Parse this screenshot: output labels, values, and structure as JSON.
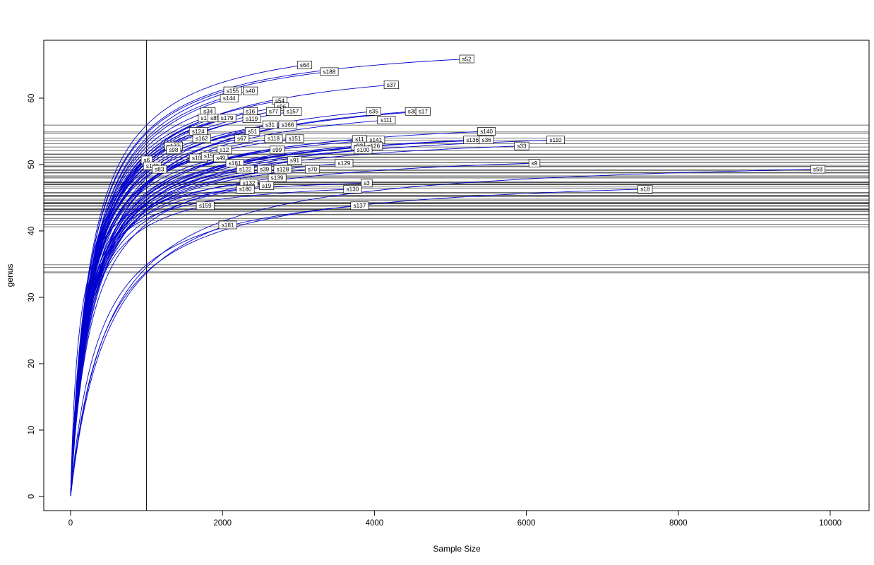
{
  "figure": {
    "background": "#ffffff",
    "curve_color": "#0000cd",
    "ref_line_color": "#454545",
    "box_color": "#000000",
    "label_box_fill": "#ffffff",
    "label_box_border": "#000000",
    "label_text_color": "#000000"
  },
  "chart_data": {
    "type": "line",
    "title": "",
    "xlabel": "Sample Size",
    "ylabel": "genus",
    "xlim": [
      0,
      10000
    ],
    "ylim": [
      0,
      66
    ],
    "x_ticks": [
      0,
      2000,
      4000,
      6000,
      8000,
      10000
    ],
    "y_ticks": [
      0,
      10,
      20,
      30,
      40,
      50,
      60
    ],
    "grid": false,
    "legend": "none",
    "vertical_reference_x": 1000,
    "curve_start": [
      1,
      1
    ],
    "curve_model": "y(x) = y_end * (x/(x+k)) / (x_end/(x_end+k)); horizontal reference line per curve at y(1000)",
    "description": "Rarefaction curves: genus richness vs sample size for each sample (blue curves, labelled boxes at curve ends). Vertical line at sample size 1000; horizontal lines mark each sample's rarefied richness at 1000.",
    "series": [
      {
        "label": "s52",
        "x_end": 5215,
        "y_end": 65.9,
        "k": 260
      },
      {
        "label": "s64",
        "x_end": 3081,
        "y_end": 65.0,
        "k": 260
      },
      {
        "label": "s188",
        "x_end": 3406,
        "y_end": 64.0,
        "k": 260
      },
      {
        "label": "s37",
        "x_end": 4222,
        "y_end": 62.0,
        "k": 300
      },
      {
        "label": "s155",
        "x_end": 2134,
        "y_end": 61.1,
        "k": 280
      },
      {
        "label": "s40",
        "x_end": 2366,
        "y_end": 61.1,
        "k": 270
      },
      {
        "label": "s144",
        "x_end": 2088,
        "y_end": 60.0,
        "k": 280
      },
      {
        "label": "s54",
        "x_end": 2756,
        "y_end": 59.6,
        "k": 270
      },
      {
        "label": "s96",
        "x_end": 2775,
        "y_end": 58.7,
        "k": 270
      },
      {
        "label": "s34",
        "x_end": 1810,
        "y_end": 58.0,
        "k": 260
      },
      {
        "label": "s16",
        "x_end": 2366,
        "y_end": 58.0,
        "k": 260
      },
      {
        "label": "s77",
        "x_end": 2672,
        "y_end": 58.0,
        "k": 270
      },
      {
        "label": "s157",
        "x_end": 2923,
        "y_end": 58.0,
        "k": 270
      },
      {
        "label": "s35",
        "x_end": 3990,
        "y_end": 58.0,
        "k": 300
      },
      {
        "label": "s30",
        "x_end": 4501,
        "y_end": 58.0,
        "k": 320
      },
      {
        "label": "s17",
        "x_end": 4640,
        "y_end": 58.0,
        "k": 320
      },
      {
        "label": "s1",
        "x_end": 1754,
        "y_end": 57.0,
        "k": 250
      },
      {
        "label": "s85",
        "x_end": 1902,
        "y_end": 57.0,
        "k": 250
      },
      {
        "label": "s179",
        "x_end": 2060,
        "y_end": 57.0,
        "k": 250
      },
      {
        "label": "s119",
        "x_end": 2385,
        "y_end": 56.9,
        "k": 250
      },
      {
        "label": "s111",
        "x_end": 4157,
        "y_end": 56.7,
        "k": 300
      },
      {
        "label": "s31",
        "x_end": 2626,
        "y_end": 56.0,
        "k": 250
      },
      {
        "label": "s166",
        "x_end": 2858,
        "y_end": 56.0,
        "k": 250
      },
      {
        "label": "s124",
        "x_end": 1680,
        "y_end": 55.0,
        "k": 240
      },
      {
        "label": "s51",
        "x_end": 2394,
        "y_end": 55.0,
        "k": 240
      },
      {
        "label": "s140",
        "x_end": 5475,
        "y_end": 55.0,
        "k": 280
      },
      {
        "label": "s162",
        "x_end": 1726,
        "y_end": 53.9,
        "k": 230
      },
      {
        "label": "s67",
        "x_end": 2255,
        "y_end": 53.9,
        "k": 230
      },
      {
        "label": "s118",
        "x_end": 2672,
        "y_end": 53.9,
        "k": 240
      },
      {
        "label": "s151",
        "x_end": 2951,
        "y_end": 53.9,
        "k": 240
      },
      {
        "label": "s11",
        "x_end": 3805,
        "y_end": 53.8,
        "k": 260
      },
      {
        "label": "s141",
        "x_end": 4018,
        "y_end": 53.7,
        "k": 260
      },
      {
        "label": "s136",
        "x_end": 5290,
        "y_end": 53.7,
        "k": 280
      },
      {
        "label": "s36",
        "x_end": 5475,
        "y_end": 53.7,
        "k": 280
      },
      {
        "label": "s110",
        "x_end": 6385,
        "y_end": 53.7,
        "k": 300
      },
      {
        "label": "s177",
        "x_end": 1355,
        "y_end": 52.8,
        "k": 220
      },
      {
        "label": "s92",
        "x_end": 3786,
        "y_end": 52.8,
        "k": 260
      },
      {
        "label": "s126",
        "x_end": 3990,
        "y_end": 52.8,
        "k": 260
      },
      {
        "label": "s33",
        "x_end": 5939,
        "y_end": 52.8,
        "k": 280
      },
      {
        "label": "s98",
        "x_end": 1355,
        "y_end": 52.2,
        "k": 220
      },
      {
        "label": "s12",
        "x_end": 2023,
        "y_end": 52.2,
        "k": 230
      },
      {
        "label": "s99",
        "x_end": 2719,
        "y_end": 52.2,
        "k": 240
      },
      {
        "label": "s100",
        "x_end": 3851,
        "y_end": 52.2,
        "k": 260
      },
      {
        "label": "s6",
        "x_end": 1002,
        "y_end": 50.7,
        "k": 200
      },
      {
        "label": "s102",
        "x_end": 1680,
        "y_end": 51.0,
        "k": 220
      },
      {
        "label": "s156",
        "x_end": 1838,
        "y_end": 51.3,
        "k": 220
      },
      {
        "label": "s49",
        "x_end": 1977,
        "y_end": 51.0,
        "k": 220
      },
      {
        "label": "s161",
        "x_end": 2162,
        "y_end": 50.2,
        "k": 220
      },
      {
        "label": "s91",
        "x_end": 2951,
        "y_end": 50.6,
        "k": 240
      },
      {
        "label": "s129",
        "x_end": 3600,
        "y_end": 50.2,
        "k": 250
      },
      {
        "label": "s9",
        "x_end": 6106,
        "y_end": 50.2,
        "k": 280
      },
      {
        "label": "s148",
        "x_end": 1076,
        "y_end": 49.8,
        "k": 200
      },
      {
        "label": "s83",
        "x_end": 1169,
        "y_end": 49.3,
        "k": 200
      },
      {
        "label": "s122",
        "x_end": 2301,
        "y_end": 49.3,
        "k": 220
      },
      {
        "label": "s39",
        "x_end": 2552,
        "y_end": 49.3,
        "k": 220
      },
      {
        "label": "s128",
        "x_end": 2793,
        "y_end": 49.3,
        "k": 230
      },
      {
        "label": "s70",
        "x_end": 3183,
        "y_end": 49.3,
        "k": 230
      },
      {
        "label": "s58",
        "x_end": 9837,
        "y_end": 49.3,
        "k": 500
      },
      {
        "label": "s132",
        "x_end": 2348,
        "y_end": 47.2,
        "k": 170
      },
      {
        "label": "s139",
        "x_end": 2719,
        "y_end": 48.0,
        "k": 220
      },
      {
        "label": "s19",
        "x_end": 2580,
        "y_end": 46.8,
        "k": 180
      },
      {
        "label": "s3",
        "x_end": 3898,
        "y_end": 47.2,
        "k": 110
      },
      {
        "label": "s130",
        "x_end": 3712,
        "y_end": 46.3,
        "k": 150
      },
      {
        "label": "s18",
        "x_end": 7563,
        "y_end": 46.3,
        "k": 450
      },
      {
        "label": "s180",
        "x_end": 2301,
        "y_end": 46.3,
        "k": 220
      },
      {
        "label": "s159",
        "x_end": 1772,
        "y_end": 43.8,
        "k": 200
      },
      {
        "label": "s137",
        "x_end": 3805,
        "y_end": 43.8,
        "k": 380
      },
      {
        "label": "s181",
        "x_end": 2069,
        "y_end": 40.9,
        "k": 520
      }
    ]
  }
}
